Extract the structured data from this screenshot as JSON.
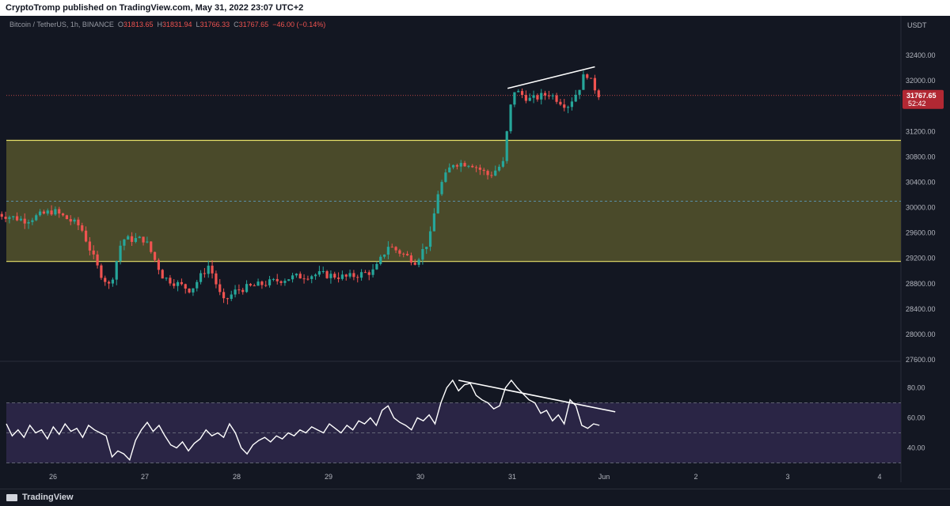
{
  "header": {
    "published_text": "CryptoTromp published on TradingView.com, May 31, 2022 23:07 UTC+2"
  },
  "legend": {
    "symbol": "Bitcoin / TetherUS, 1h, BINANCE",
    "open_label": "O",
    "open": "31813.65",
    "high_label": "H",
    "high": "31831.94",
    "low_label": "L",
    "low": "31766.33",
    "close_label": "C",
    "close": "31767.65",
    "change": "−46.00 (−0.14%)"
  },
  "price_tag": {
    "price": "31767.65",
    "countdown": "52:42"
  },
  "footer": {
    "brand": "TradingView"
  },
  "colors": {
    "up": "#26a69a",
    "down": "#ef5350",
    "zone_fill": "#4a4a2a",
    "zone_border": "#e8e26a",
    "rsi_band": "#2a2545",
    "rsi_line": "#ffffff",
    "price_tag": "#b22833",
    "background": "#131722"
  },
  "chart_data": [
    {
      "type": "candlestick",
      "title": "",
      "currency": "USDT",
      "ylim": [
        27600,
        32800
      ],
      "y_ticks": [
        "32400.00",
        "32000.00",
        "31600.00",
        "31200.00",
        "30800.00",
        "30400.00",
        "30000.00",
        "29600.00",
        "29200.00",
        "28800.00",
        "28400.00",
        "28000.00",
        "27600.00"
      ],
      "x_ticks": [
        "26",
        "27",
        "28",
        "29",
        "30",
        "31",
        "Jun",
        "2",
        "3",
        "4"
      ],
      "zone": {
        "low": 29150,
        "high": 31060,
        "mid": 30100
      },
      "current_price": 31767.65,
      "anchor_points": [
        {
          "day": 25.4,
          "price": 29900
        },
        {
          "day": 25.7,
          "price": 29800
        },
        {
          "day": 26.0,
          "price": 29950
        },
        {
          "day": 26.3,
          "price": 29700
        },
        {
          "day": 26.5,
          "price": 29000
        },
        {
          "day": 26.62,
          "price": 28750
        },
        {
          "day": 26.75,
          "price": 29500
        },
        {
          "day": 27.0,
          "price": 29500
        },
        {
          "day": 27.2,
          "price": 28900
        },
        {
          "day": 27.5,
          "price": 28700
        },
        {
          "day": 27.7,
          "price": 29100
        },
        {
          "day": 27.85,
          "price": 28500
        },
        {
          "day": 28.0,
          "price": 28700
        },
        {
          "day": 28.3,
          "price": 28800
        },
        {
          "day": 28.6,
          "price": 28900
        },
        {
          "day": 28.9,
          "price": 28950
        },
        {
          "day": 29.2,
          "price": 28900
        },
        {
          "day": 29.5,
          "price": 29000
        },
        {
          "day": 29.65,
          "price": 29400
        },
        {
          "day": 29.95,
          "price": 29150
        },
        {
          "day": 30.1,
          "price": 29500
        },
        {
          "day": 30.2,
          "price": 30300
        },
        {
          "day": 30.35,
          "price": 30700
        },
        {
          "day": 30.55,
          "price": 30700
        },
        {
          "day": 30.75,
          "price": 30500
        },
        {
          "day": 30.9,
          "price": 30700
        },
        {
          "day": 30.97,
          "price": 31500
        },
        {
          "day": 31.02,
          "price": 31850
        },
        {
          "day": 31.2,
          "price": 31700
        },
        {
          "day": 31.4,
          "price": 31800
        },
        {
          "day": 31.6,
          "price": 31600
        },
        {
          "day": 31.72,
          "price": 31850
        },
        {
          "day": 31.8,
          "price": 32150
        },
        {
          "day": 31.87,
          "price": 31950
        },
        {
          "day": 31.95,
          "price": 31767
        }
      ],
      "trendline": {
        "from": {
          "day": 30.95,
          "price": 31880
        },
        "to": {
          "day": 31.9,
          "price": 32220
        }
      }
    },
    {
      "type": "line",
      "title": "",
      "ylim": [
        25,
        95
      ],
      "y_ticks": [
        "80.00",
        "60.00",
        "40.00"
      ],
      "bands": {
        "upper": 70,
        "middle": 50,
        "lower": 30
      },
      "series": [
        {
          "values": [
            56,
            48,
            52,
            47,
            55,
            50,
            52,
            46,
            54,
            49,
            56,
            51,
            53,
            47,
            55,
            52,
            50,
            48,
            34,
            38,
            36,
            32,
            45,
            52,
            57,
            51,
            55,
            48,
            42,
            40,
            44,
            38,
            43,
            46,
            52,
            48,
            50,
            47,
            56,
            50,
            40,
            36,
            42,
            45,
            47,
            44,
            48,
            46,
            50,
            48,
            52,
            50,
            54,
            52,
            50,
            56,
            53,
            50,
            55,
            52,
            58,
            56,
            60,
            55,
            65,
            68,
            60,
            57,
            55,
            52,
            60,
            58,
            62,
            56,
            70,
            80,
            85,
            78,
            82,
            83,
            75,
            72,
            70,
            66,
            68,
            80,
            85,
            80,
            76,
            72,
            70,
            63,
            65,
            58,
            62,
            56,
            72,
            68,
            55,
            53,
            56,
            55
          ]
        }
      ],
      "trendline": {
        "from": {
          "x_index": 77,
          "value": 85
        },
        "to": {
          "x_index": 101,
          "value": 64
        }
      }
    }
  ]
}
